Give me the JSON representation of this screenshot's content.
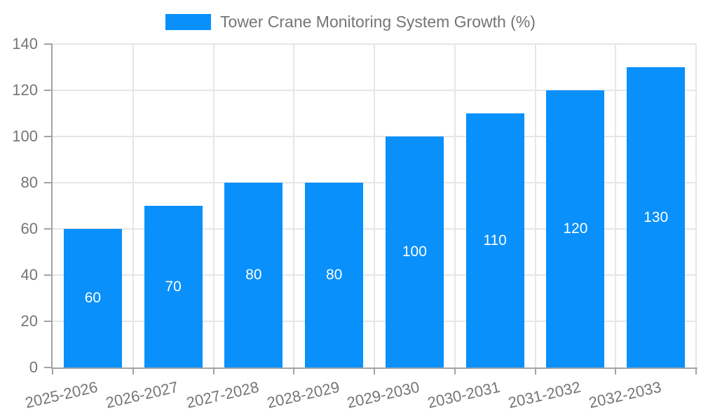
{
  "chart_data": {
    "type": "bar",
    "title": "Tower Crane Monitoring System Growth (%)",
    "legend_position": "top-center",
    "categories": [
      "2025-2026",
      "2026-2027",
      "2027-2028",
      "2028-2029",
      "2029-2030",
      "2030-2031",
      "2031-2032",
      "2032-2033"
    ],
    "series": [
      {
        "name": "Tower Crane Monitoring System Growth (%)",
        "values": [
          60,
          70,
          80,
          80,
          100,
          110,
          120,
          130
        ]
      }
    ],
    "bar_value_labels": [
      "60",
      "70",
      "80",
      "80",
      "100",
      "110",
      "120",
      "130"
    ],
    "xlabel": "",
    "ylabel": "",
    "ylim": [
      0,
      140
    ],
    "yticks": [
      0,
      20,
      40,
      60,
      80,
      100,
      120,
      140
    ],
    "grid": true,
    "x_tick_label_rotation_deg": -13,
    "colors": {
      "bar": "#0990FA",
      "axis": "#A3A3A3",
      "grid": "#E6E6E6",
      "tick_text": "#757575",
      "bar_label_text": "#FFFFFF",
      "background": "#FFFFFF"
    }
  }
}
